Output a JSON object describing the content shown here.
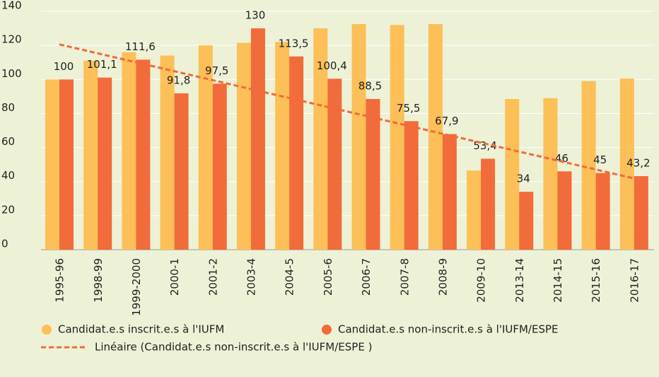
{
  "chart_data": {
    "type": "bar",
    "categories": [
      "1995-96",
      "1998-99",
      "1999-2000",
      "2000-1",
      "2001-2",
      "2003-4",
      "2004-5",
      "2005-6",
      "2006-7",
      "2007-8",
      "2008-9",
      "2009-10",
      "2013-14",
      "2014-15",
      "2015-16",
      "2016-17"
    ],
    "series": [
      {
        "name": "Candidat.e.s inscrit.e.s à l'IUFM",
        "color": "#fdbf57",
        "values": [
          100,
          111,
          116,
          114,
          120,
          121.5,
          122,
          130,
          132.5,
          132,
          132.5,
          46.5,
          88.5,
          89,
          99,
          100.5
        ]
      },
      {
        "name": "Candidat.e.s non-inscrit.e.s à l'IUFM/ESPE",
        "color": "#f26b3a",
        "values": [
          100,
          101.1,
          111.6,
          91.8,
          97.5,
          130,
          113.5,
          100.4,
          88.5,
          75.5,
          67.9,
          53.4,
          34,
          46,
          45,
          43.2
        ],
        "value_labels": [
          "100",
          "101,1",
          "111,6",
          "91,8",
          "97,5",
          "130",
          "113,5",
          "100,4",
          "88,5",
          "75,5",
          "67,9",
          "53,4",
          "34",
          "46",
          "45",
          "43,2"
        ]
      }
    ],
    "trendline": {
      "name": "Linéaire (Candidat.e.s non-inscrit.e.s à l'IUFM/ESPE )",
      "color": "#f26b3a"
    },
    "ylim": [
      0,
      140
    ],
    "yticks": [
      0,
      20,
      40,
      60,
      80,
      100,
      120,
      140
    ],
    "grid": true
  }
}
